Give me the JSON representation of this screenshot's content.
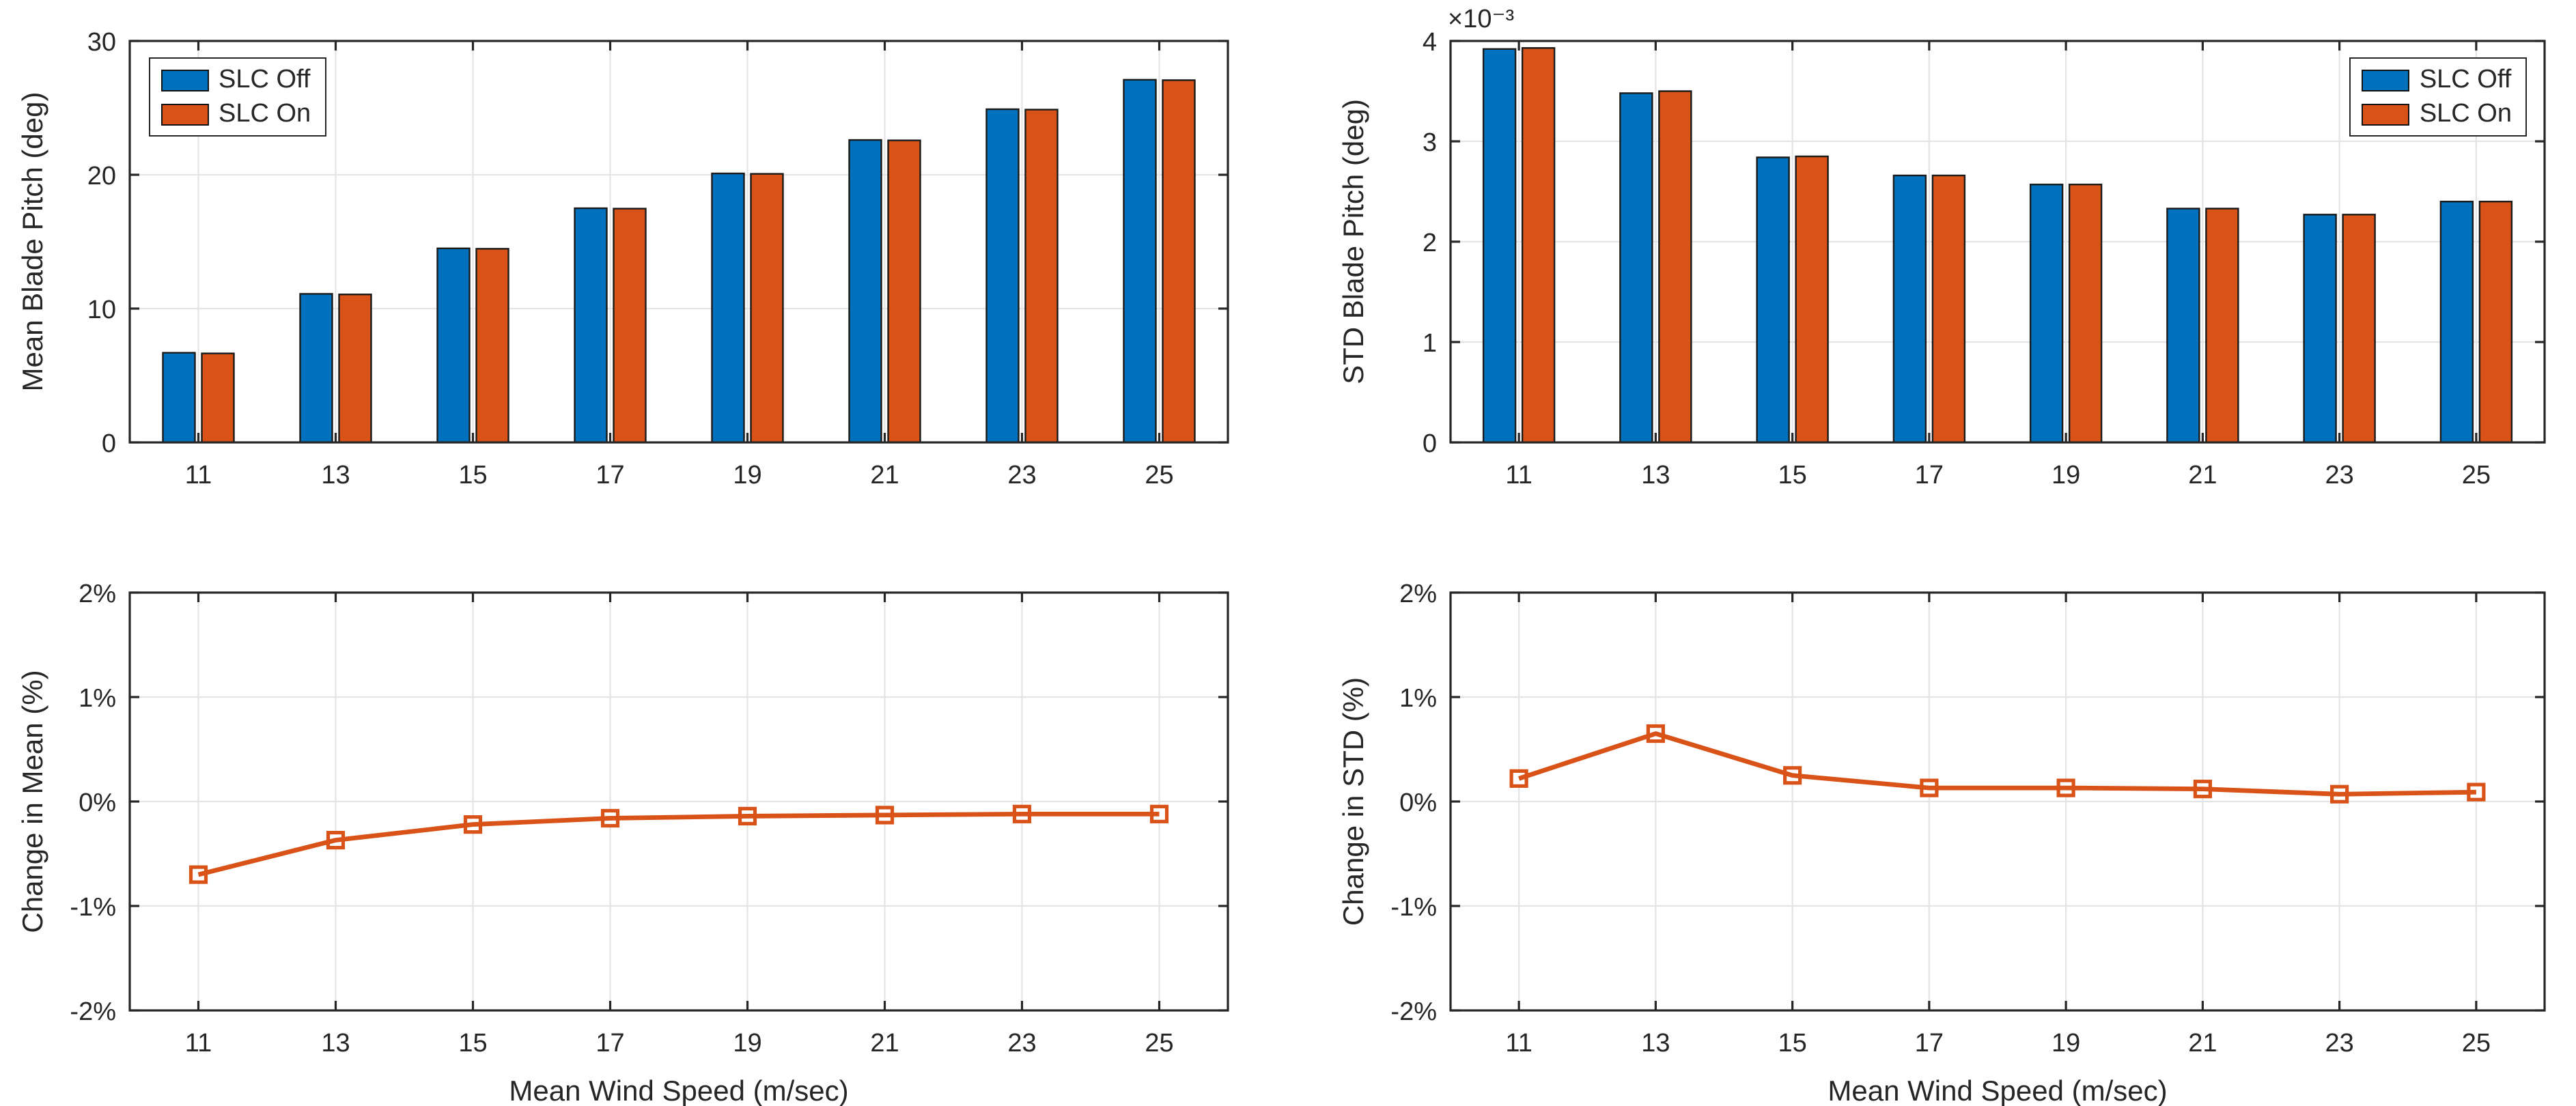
{
  "figure": {
    "background": "#ffffff",
    "description": "2x2 MATLAB-style subplot figure comparing blade pitch statistics with SLC Off vs SLC On"
  },
  "colors": {
    "slc_off": "#0072BD",
    "slc_on": "#D95319",
    "line": "#D95319",
    "grid": "#E4E4E4",
    "axis": "#262626",
    "bar_edge": "#1a1a1a",
    "text": "#262626",
    "marker_face": "#ffffff"
  },
  "chart_data": [
    {
      "type": "bar",
      "name": "mean-blade-pitch",
      "title": "",
      "ylabel": "Mean Blade Pitch (deg)",
      "xlabel": "",
      "categories": [
        11,
        13,
        15,
        17,
        19,
        21,
        23,
        25
      ],
      "xlim": [
        10,
        26
      ],
      "ylim": [
        0,
        30
      ],
      "yticks": [
        0,
        10,
        20,
        30
      ],
      "ytick_labels": [
        "0",
        "10",
        "20",
        "30"
      ],
      "grid": true,
      "legend_position": "top-left",
      "series": [
        {
          "name": "SLC Off",
          "color": "#0072BD",
          "values": [
            6.7,
            11.1,
            14.5,
            17.5,
            20.1,
            22.6,
            24.9,
            27.1
          ]
        },
        {
          "name": "SLC On",
          "color": "#D95319",
          "values": [
            6.65,
            11.06,
            14.47,
            17.47,
            20.07,
            22.57,
            24.87,
            27.07
          ]
        }
      ]
    },
    {
      "type": "bar",
      "name": "std-blade-pitch",
      "title": "",
      "ylabel": "STD Blade Pitch (deg)",
      "xlabel": "",
      "y_multiplier": "×10⁻³",
      "categories": [
        11,
        13,
        15,
        17,
        19,
        21,
        23,
        25
      ],
      "xlim": [
        10,
        26
      ],
      "ylim": [
        0,
        4
      ],
      "yticks": [
        0,
        1,
        2,
        3,
        4
      ],
      "ytick_labels": [
        "0",
        "1",
        "2",
        "3",
        "4"
      ],
      "grid": true,
      "legend_position": "top-right",
      "series": [
        {
          "name": "SLC Off",
          "color": "#0072BD",
          "values": [
            3.92,
            3.48,
            2.84,
            2.66,
            2.57,
            2.33,
            2.27,
            2.4
          ]
        },
        {
          "name": "SLC On",
          "color": "#D95319",
          "values": [
            3.93,
            3.5,
            2.85,
            2.66,
            2.57,
            2.33,
            2.27,
            2.4
          ]
        }
      ]
    },
    {
      "type": "line",
      "name": "change-in-mean",
      "title": "",
      "ylabel": "Change in Mean (%)",
      "xlabel": "Mean Wind Speed (m/sec)",
      "marker": "square",
      "color": "#D95319",
      "categories": [
        11,
        13,
        15,
        17,
        19,
        21,
        23,
        25
      ],
      "xlim": [
        10,
        26
      ],
      "ylim": [
        -2,
        2
      ],
      "yticks": [
        -2,
        -1,
        0,
        1,
        2
      ],
      "ytick_labels": [
        "-2%",
        "-1%",
        "0%",
        "1%",
        "2%"
      ],
      "grid": true,
      "values": [
        -0.7,
        -0.37,
        -0.22,
        -0.16,
        -0.14,
        -0.13,
        -0.12,
        -0.12
      ]
    },
    {
      "type": "line",
      "name": "change-in-std",
      "title": "",
      "ylabel": "Change in STD (%)",
      "xlabel": "Mean Wind Speed (m/sec)",
      "marker": "square",
      "color": "#D95319",
      "categories": [
        11,
        13,
        15,
        17,
        19,
        21,
        23,
        25
      ],
      "xlim": [
        10,
        26
      ],
      "ylim": [
        -2,
        2
      ],
      "yticks": [
        -2,
        -1,
        0,
        1,
        2
      ],
      "ytick_labels": [
        "-2%",
        "-1%",
        "0%",
        "1%",
        "2%"
      ],
      "grid": true,
      "values": [
        0.22,
        0.65,
        0.25,
        0.13,
        0.13,
        0.12,
        0.07,
        0.09
      ]
    }
  ]
}
